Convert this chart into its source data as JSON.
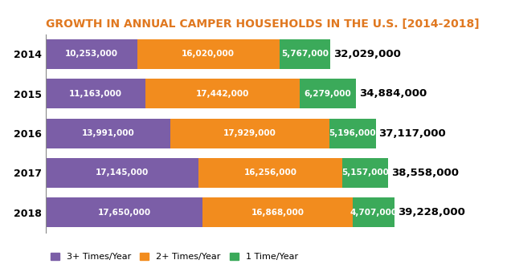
{
  "title": "GROWTH IN ANNUAL CAMPER HOUSEHOLDS IN THE U.S. [2014-2018]",
  "title_color": "#e07820",
  "years": [
    "2014",
    "2015",
    "2016",
    "2017",
    "2018"
  ],
  "three_plus": [
    10253000,
    11163000,
    13991000,
    17145000,
    17650000
  ],
  "two_plus": [
    16020000,
    17442000,
    17929000,
    16256000,
    16868000
  ],
  "one_time": [
    5767000,
    6279000,
    5196000,
    5157000,
    4707000
  ],
  "totals": [
    "32,029,000",
    "34,884,000",
    "37,117,000",
    "38,558,000",
    "39,228,000"
  ],
  "color_three_plus": "#7B5EA7",
  "color_two_plus": "#F28C1E",
  "color_one_time": "#3BAA5A",
  "background_color": "#FFFFFF",
  "bar_height": 0.75,
  "legend_labels": [
    "3+ Times/Year",
    "2+ Times/Year",
    "1 Time/Year"
  ],
  "xlim": 42000000,
  "bar_text_fontsize": 7.5,
  "total_fontsize": 9.5,
  "year_fontsize": 9,
  "title_fontsize": 10
}
